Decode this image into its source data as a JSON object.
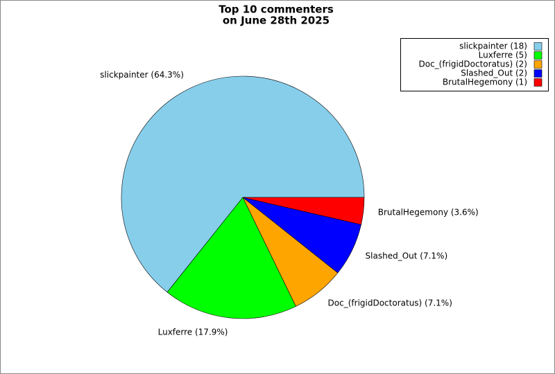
{
  "chart_data": {
    "type": "pie",
    "title": [
      "Top 10 commenters",
      "on June 28th 2025"
    ],
    "categories": [
      "slickpainter (18)",
      "Luxferre (5)",
      "Doc_(frigidDoctoratus) (2)",
      "Slashed_Out (2)",
      "BrutalHegemony (1)"
    ],
    "values": [
      64.3,
      17.9,
      7.1,
      7.1,
      3.6
    ],
    "value_labels": [
      "slickpainter (64.3%)",
      "Luxferre (17.9%)",
      "Doc_(frigidDoctoratus) (7.1%)",
      "Slashed_Out (7.1%)",
      "BrutalHegemony (3.6%)"
    ],
    "colors": [
      "#87ceeb",
      "#00ff00",
      "#ffa500",
      "#0000ff",
      "#ff0000"
    ],
    "legend": "upper right"
  }
}
